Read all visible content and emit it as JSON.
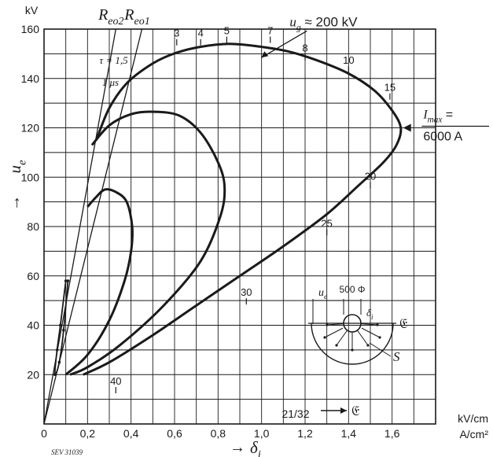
{
  "chart_data": {
    "type": "line",
    "grid": true,
    "x_axis": {
      "range": [
        0,
        1.8
      ],
      "ticks": [
        0,
        0.2,
        0.4,
        0.6,
        0.8,
        1.0,
        1.2,
        1.4,
        1.6
      ],
      "tick_labels": [
        "0",
        "0,2",
        "0,4",
        "0,6",
        "0,8",
        "1,0",
        "1,2",
        "1,4",
        "1,6"
      ],
      "arrow": "→",
      "symbol": "δ",
      "symbol_sub": "i",
      "unit": "A/cm²",
      "secondary_label": "21/32",
      "secondary_symbol": "𝔈",
      "secondary_unit": "kV/cm"
    },
    "y_axis": {
      "range": [
        0,
        160
      ],
      "ticks": [
        0,
        20,
        40,
        60,
        80,
        100,
        120,
        140,
        160
      ],
      "tick_labels": [
        "",
        "20",
        "40",
        "60",
        "80",
        "100",
        "120",
        "140",
        "160"
      ],
      "unit": "kV",
      "arrow": "→",
      "symbol": "u",
      "symbol_sub": "e"
    },
    "lines": [
      {
        "label": "R",
        "label_sub": "eo2",
        "points": [
          [
            0.0,
            0.0
          ],
          [
            0.33,
            160.0
          ]
        ]
      },
      {
        "label": "R",
        "label_sub": "eo1",
        "points": [
          [
            0.0,
            0.0
          ],
          [
            0.45,
            160.0
          ]
        ]
      }
    ],
    "series": [
      {
        "points": [
          [
            0.1,
            58
          ],
          [
            0.075,
            40
          ],
          [
            0.06,
            30
          ],
          [
            0.05,
            20
          ],
          [
            0.07,
            25
          ],
          [
            0.09,
            38
          ],
          [
            0.11,
            58
          ]
        ]
      },
      {
        "points": [
          [
            0.2,
            88
          ],
          [
            0.24,
            92
          ],
          [
            0.28,
            95
          ],
          [
            0.33,
            94
          ],
          [
            0.38,
            90
          ],
          [
            0.405,
            80
          ],
          [
            0.4,
            70
          ],
          [
            0.37,
            58
          ],
          [
            0.3,
            42
          ],
          [
            0.2,
            28
          ],
          [
            0.1,
            20
          ]
        ]
      },
      {
        "points": [
          [
            0.22,
            113
          ],
          [
            0.3,
            121
          ],
          [
            0.4,
            125.5
          ],
          [
            0.5,
            126.5
          ],
          [
            0.62,
            125
          ],
          [
            0.72,
            118
          ],
          [
            0.8,
            106
          ],
          [
            0.83,
            96
          ],
          [
            0.81,
            84
          ],
          [
            0.72,
            66
          ],
          [
            0.55,
            48
          ],
          [
            0.35,
            32
          ],
          [
            0.2,
            23
          ],
          [
            0.12,
            20
          ]
        ]
      },
      {
        "points": [
          [
            0.24,
            115
          ],
          [
            0.3,
            128
          ],
          [
            0.38,
            138
          ],
          [
            0.48,
            145
          ],
          [
            0.58,
            149.5
          ],
          [
            0.7,
            152.5
          ],
          [
            0.85,
            154
          ],
          [
            1.0,
            152.8
          ],
          [
            1.12,
            151
          ],
          [
            1.25,
            147.5
          ],
          [
            1.4,
            142
          ],
          [
            1.52,
            135
          ],
          [
            1.6,
            127
          ],
          [
            1.64,
            120
          ],
          [
            1.62,
            113
          ],
          [
            1.56,
            106
          ],
          [
            1.45,
            97
          ],
          [
            1.3,
            85
          ],
          [
            1.1,
            72
          ],
          [
            0.9,
            60
          ],
          [
            0.7,
            48
          ],
          [
            0.5,
            36
          ],
          [
            0.3,
            25
          ],
          [
            0.18,
            20
          ]
        ]
      }
    ],
    "point_labels": [
      {
        "text": "3",
        "x": 0.61,
        "y": 155
      },
      {
        "text": "4",
        "x": 0.72,
        "y": 155
      },
      {
        "text": "5",
        "x": 0.84,
        "y": 156
      },
      {
        "text": "7",
        "x": 1.04,
        "y": 156
      },
      {
        "text": "8",
        "x": 1.2,
        "y": 149
      },
      {
        "text": "10",
        "x": 1.4,
        "y": 144
      },
      {
        "text": "15",
        "x": 1.59,
        "y": 133
      },
      {
        "text": "20",
        "x": 1.5,
        "y": 97
      },
      {
        "text": "25",
        "x": 1.3,
        "y": 78
      },
      {
        "text": "30",
        "x": 0.93,
        "y": 50
      },
      {
        "text": "40",
        "x": 0.33,
        "y": 14
      }
    ],
    "annotations": [
      {
        "type": "ug",
        "text": "u",
        "sub": "g",
        "rest": " ≈ 200 kV",
        "x": 1.1,
        "y": 158
      },
      {
        "type": "tau",
        "text": "τ = 1,5",
        "x": 0.32,
        "y": 146
      },
      {
        "type": "text",
        "text": "1 μs",
        "x": 0.305,
        "y": 137
      },
      {
        "type": "imax",
        "text": "I",
        "sub": "max",
        "rest": " =",
        "value": "6000 A",
        "x": 1.7,
        "y": 120
      }
    ],
    "inset": {
      "u": "u",
      "u_sub": "e",
      "dimension": "500 Φ",
      "delta": "δ",
      "delta_sub": "i",
      "field": "𝔈",
      "s": "S"
    },
    "figure_code": "SEV 31039"
  }
}
